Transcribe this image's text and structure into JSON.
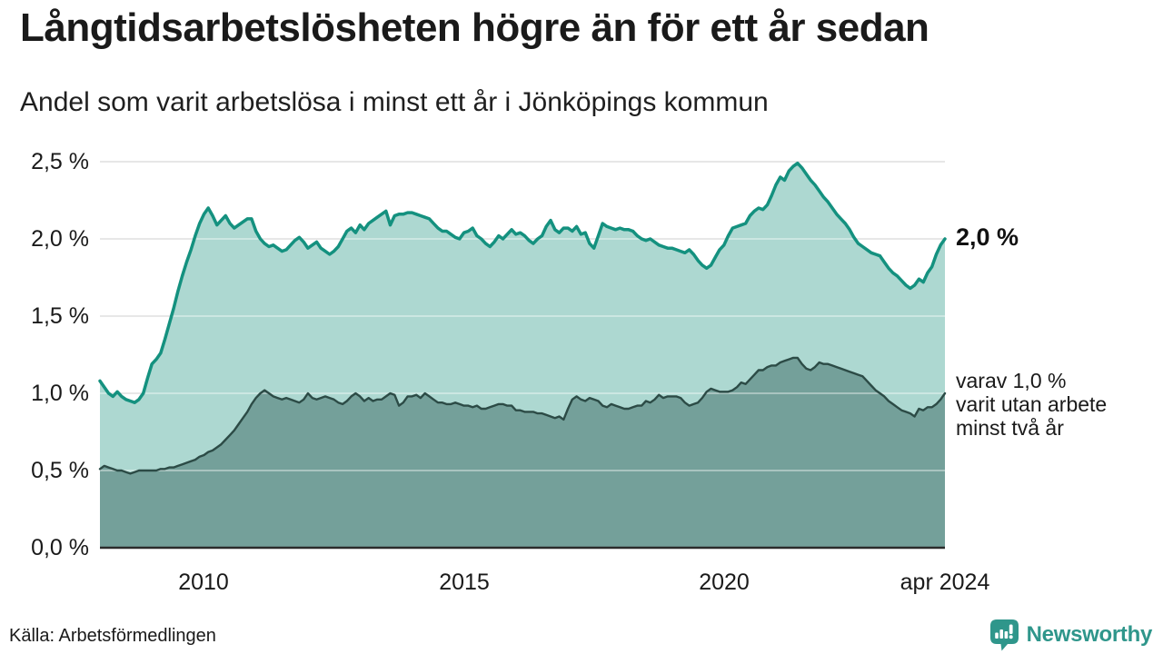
{
  "header": {
    "title": "Långtidsarbetslösheten högre än för ett år sedan",
    "subtitle": "Andel som varit arbetslösa i minst ett år i Jönköpings kommun"
  },
  "axes": {
    "y_ticks": [
      "2,5 %",
      "2,0 %",
      "1,5 %",
      "1,0 %",
      "0,5 %",
      "0,0 %"
    ],
    "x_ticks": [
      "2010",
      "2015",
      "2020",
      "apr 2024"
    ]
  },
  "annotations": {
    "total_label": "2,0 %",
    "two_plus_lines": [
      "varav 1,0 %",
      "varit utan arbete",
      "minst två år"
    ]
  },
  "footer": {
    "source": "Källa: Arbetsförmedlingen",
    "brand": "Newsworthy"
  },
  "colors": {
    "line_total": "#14917f",
    "fill_total": "#add8d1",
    "line_two_plus": "#2c4b46",
    "fill_two_plus": "#74a09a",
    "grid": "#d9d9d9",
    "grid_overlay": "rgba(255,255,255,0.38)",
    "baseline": "#2b2b2b",
    "brand_teal": "#2f968b",
    "text": "#1a1a1a"
  },
  "chart_data": {
    "type": "area",
    "title": "Långtidsarbetslösheten högre än för ett år sedan",
    "subtitle": "Andel som varit arbetslösa i minst ett år i Jönköpings kommun",
    "unit": "%",
    "x_start": "2008-01",
    "x_end": "2024-04",
    "x_step": "month",
    "ylim": [
      0,
      2.5
    ],
    "grid": true,
    "legend": "none",
    "y_tick_values": [
      2.5,
      2.0,
      1.5,
      1.0,
      0.5,
      0.0
    ],
    "y_tick_labels": [
      "2,5 %",
      "2,0 %",
      "1,5 %",
      "1,0 %",
      "0,5 %",
      "0,0 %"
    ],
    "x_tick_labels": [
      "2010",
      "2015",
      "2020",
      "apr 2024"
    ],
    "x_tick_indices": [
      24,
      84,
      144,
      195
    ],
    "series": [
      {
        "name": "Andel arbetslösa minst ett år",
        "end_label": "2,0 %",
        "end_value": 2.0,
        "values": [
          1.08,
          1.04,
          1.0,
          0.98,
          1.01,
          0.98,
          0.96,
          0.95,
          0.94,
          0.96,
          1.0,
          1.1,
          1.19,
          1.22,
          1.26,
          1.35,
          1.45,
          1.55,
          1.66,
          1.76,
          1.85,
          1.93,
          2.02,
          2.1,
          2.16,
          2.2,
          2.15,
          2.09,
          2.12,
          2.15,
          2.1,
          2.07,
          2.09,
          2.11,
          2.13,
          2.13,
          2.05,
          2.0,
          1.97,
          1.95,
          1.96,
          1.94,
          1.92,
          1.93,
          1.96,
          1.99,
          2.01,
          1.98,
          1.94,
          1.96,
          1.98,
          1.94,
          1.92,
          1.9,
          1.92,
          1.95,
          2.0,
          2.05,
          2.07,
          2.04,
          2.09,
          2.06,
          2.1,
          2.12,
          2.14,
          2.16,
          2.18,
          2.09,
          2.15,
          2.16,
          2.16,
          2.17,
          2.17,
          2.16,
          2.15,
          2.14,
          2.13,
          2.1,
          2.07,
          2.05,
          2.05,
          2.03,
          2.01,
          2.0,
          2.04,
          2.05,
          2.07,
          2.02,
          2.0,
          1.97,
          1.95,
          1.98,
          2.02,
          2.0,
          2.03,
          2.06,
          2.03,
          2.04,
          2.02,
          1.99,
          1.97,
          2.0,
          2.02,
          2.08,
          2.12,
          2.06,
          2.04,
          2.07,
          2.07,
          2.05,
          2.08,
          2.03,
          2.04,
          1.97,
          1.94,
          2.02,
          2.1,
          2.08,
          2.07,
          2.06,
          2.07,
          2.06,
          2.06,
          2.05,
          2.02,
          2.0,
          1.99,
          2.0,
          1.98,
          1.96,
          1.95,
          1.94,
          1.94,
          1.93,
          1.92,
          1.91,
          1.93,
          1.9,
          1.86,
          1.83,
          1.81,
          1.83,
          1.88,
          1.93,
          1.96,
          2.02,
          2.07,
          2.08,
          2.09,
          2.1,
          2.15,
          2.18,
          2.2,
          2.19,
          2.22,
          2.28,
          2.35,
          2.4,
          2.38,
          2.44,
          2.47,
          2.49,
          2.46,
          2.42,
          2.38,
          2.35,
          2.31,
          2.27,
          2.24,
          2.2,
          2.16,
          2.13,
          2.1,
          2.06,
          2.01,
          1.97,
          1.95,
          1.93,
          1.91,
          1.9,
          1.89,
          1.85,
          1.81,
          1.78,
          1.76,
          1.73,
          1.7,
          1.68,
          1.7,
          1.74,
          1.72,
          1.78,
          1.82,
          1.9,
          1.96,
          2.0
        ]
      },
      {
        "name": "varav utan arbete minst två år",
        "end_label": "varav 1,0 % varit utan arbete minst två år",
        "end_value": 1.0,
        "values": [
          0.51,
          0.53,
          0.52,
          0.51,
          0.5,
          0.5,
          0.49,
          0.48,
          0.49,
          0.5,
          0.5,
          0.5,
          0.5,
          0.5,
          0.51,
          0.51,
          0.52,
          0.52,
          0.53,
          0.54,
          0.55,
          0.56,
          0.57,
          0.59,
          0.6,
          0.62,
          0.63,
          0.65,
          0.67,
          0.7,
          0.73,
          0.76,
          0.8,
          0.84,
          0.88,
          0.93,
          0.97,
          1.0,
          1.02,
          1.0,
          0.98,
          0.97,
          0.96,
          0.97,
          0.96,
          0.95,
          0.94,
          0.96,
          1.0,
          0.97,
          0.96,
          0.97,
          0.98,
          0.97,
          0.96,
          0.94,
          0.93,
          0.95,
          0.98,
          1.0,
          0.98,
          0.95,
          0.97,
          0.95,
          0.96,
          0.96,
          0.98,
          1.0,
          0.99,
          0.92,
          0.94,
          0.98,
          0.98,
          0.99,
          0.97,
          1.0,
          0.98,
          0.96,
          0.94,
          0.94,
          0.93,
          0.93,
          0.94,
          0.93,
          0.92,
          0.92,
          0.91,
          0.92,
          0.9,
          0.9,
          0.91,
          0.92,
          0.93,
          0.93,
          0.92,
          0.92,
          0.89,
          0.89,
          0.88,
          0.88,
          0.88,
          0.87,
          0.87,
          0.86,
          0.85,
          0.84,
          0.85,
          0.83,
          0.9,
          0.96,
          0.98,
          0.96,
          0.95,
          0.97,
          0.96,
          0.95,
          0.92,
          0.91,
          0.93,
          0.92,
          0.91,
          0.9,
          0.9,
          0.91,
          0.92,
          0.92,
          0.95,
          0.94,
          0.96,
          0.99,
          0.97,
          0.98,
          0.98,
          0.98,
          0.97,
          0.94,
          0.92,
          0.93,
          0.94,
          0.97,
          1.01,
          1.03,
          1.02,
          1.01,
          1.01,
          1.01,
          1.02,
          1.04,
          1.07,
          1.06,
          1.09,
          1.12,
          1.15,
          1.15,
          1.17,
          1.18,
          1.18,
          1.2,
          1.21,
          1.22,
          1.23,
          1.23,
          1.19,
          1.16,
          1.15,
          1.17,
          1.2,
          1.19,
          1.19,
          1.18,
          1.17,
          1.16,
          1.15,
          1.14,
          1.13,
          1.12,
          1.11,
          1.08,
          1.05,
          1.02,
          1.0,
          0.98,
          0.95,
          0.93,
          0.91,
          0.89,
          0.88,
          0.87,
          0.85,
          0.9,
          0.89,
          0.91,
          0.91,
          0.93,
          0.96,
          1.0
        ]
      }
    ]
  }
}
